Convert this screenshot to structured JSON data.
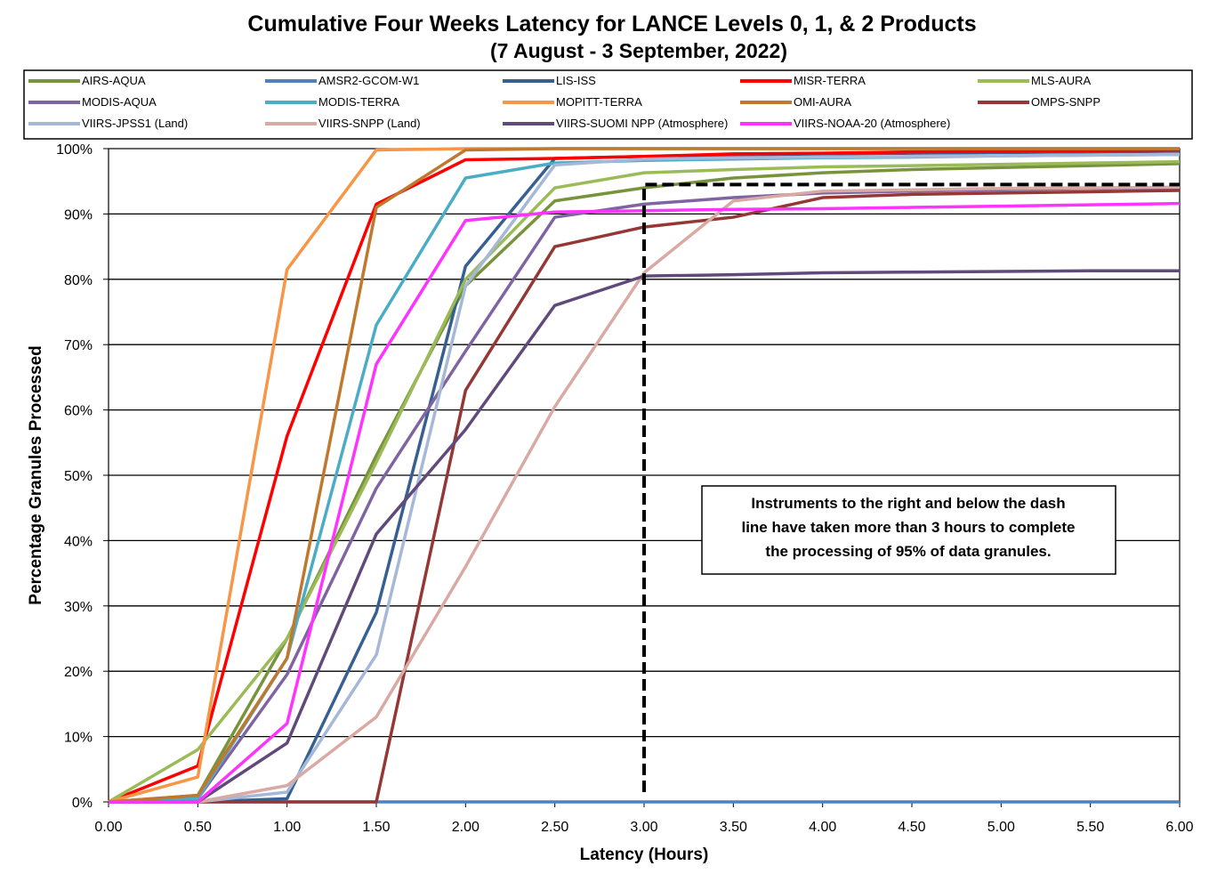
{
  "chart_data": {
    "type": "line",
    "title": "Cumulative Four Weeks Latency  for LANCE Levels 0, 1, & 2 Products",
    "subtitle": "(7  August   -  3  September,  2022)",
    "xlabel": "Latency (Hours)",
    "ylabel": "Percentage Granules Processed",
    "xlim": [
      0,
      6
    ],
    "ylim": [
      0,
      100
    ],
    "grid": "horizontal",
    "legend_position": "top",
    "x": [
      0,
      0.5,
      1.0,
      1.5,
      2.0,
      2.5,
      3.0,
      3.5,
      4.0,
      4.5,
      5.0,
      5.5,
      6.0
    ],
    "x_tick_labels": [
      "0.00",
      "0.50",
      "1.00",
      "1.50",
      "2.00",
      "2.50",
      "3.00",
      "3.50",
      "4.00",
      "4.50",
      "5.00",
      "5.50",
      "6.00"
    ],
    "y_tick_labels": [
      "0%",
      "10%",
      "20%",
      "30%",
      "40%",
      "50%",
      "60%",
      "70%",
      "80%",
      "90%",
      "100%"
    ],
    "series": [
      {
        "name": "AIRS-AQUA",
        "color": "#77933C",
        "values": [
          0,
          1,
          25,
          53,
          79,
          92,
          94,
          95.5,
          96.3,
          96.8,
          97.1,
          97.4,
          97.7
        ]
      },
      {
        "name": "AMSR2-GCOM-W1",
        "color": "#4F81BD",
        "values": [
          0,
          0,
          0,
          0,
          0,
          0,
          0,
          0,
          0,
          0,
          0,
          0,
          0
        ]
      },
      {
        "name": "LIS-ISS",
        "color": "#376092",
        "values": [
          0,
          0,
          0.5,
          29,
          82,
          98.5,
          98.8,
          99,
          99.2,
          99.3,
          99.4,
          99.5,
          99.6
        ]
      },
      {
        "name": "MISR-TERRA",
        "color": "#FF0000",
        "values": [
          0,
          5.5,
          56,
          91.5,
          98.3,
          98.5,
          98.8,
          99.2,
          99.3,
          99.5,
          99.6,
          99.7,
          99.8
        ]
      },
      {
        "name": "MLS-AURA",
        "color": "#9BBB59",
        "values": [
          0,
          8,
          25,
          52,
          80,
          94,
          96.3,
          96.8,
          97.2,
          97.4,
          97.6,
          97.8,
          98
        ]
      },
      {
        "name": "MODIS-AQUA",
        "color": "#8064A2",
        "values": [
          0,
          0.5,
          19.5,
          48,
          69,
          89.5,
          91.5,
          92.5,
          93.2,
          93.5,
          93.7,
          93.9,
          94
        ]
      },
      {
        "name": "MODIS-TERRA",
        "color": "#4BACC6",
        "values": [
          0,
          0.5,
          22,
          73,
          95.5,
          97.8,
          98.2,
          98.4,
          98.6,
          98.7,
          98.9,
          99,
          99.1
        ]
      },
      {
        "name": "MOPITT-TERRA",
        "color": "#F79646",
        "values": [
          0,
          3.8,
          81.5,
          99.8,
          100,
          100,
          100,
          100,
          100,
          100,
          100,
          100,
          100
        ]
      },
      {
        "name": "OMI-AURA",
        "color": "#C0782F",
        "values": [
          0,
          1,
          22,
          91,
          99.8,
          100,
          100,
          100,
          100,
          100,
          100,
          100,
          100
        ]
      },
      {
        "name": "OMPS-SNPP",
        "color": "#953735",
        "values": [
          0,
          0,
          0,
          0,
          63,
          85,
          88,
          89.5,
          92.5,
          93,
          93.2,
          93.4,
          93.6
        ]
      },
      {
        "name": "VIIRS-JPSS1 (Land)",
        "color": "#A6B8D7",
        "values": [
          0,
          0,
          1.5,
          22.5,
          79,
          97.5,
          98.4,
          98.6,
          98.7,
          98.8,
          98.9,
          99,
          99.1
        ]
      },
      {
        "name": "VIIRS-SNPP (Land)",
        "color": "#D9A9A3",
        "values": [
          0,
          0,
          2.5,
          13,
          36,
          60.5,
          81,
          92,
          93.5,
          93.7,
          93.9,
          94,
          94.1
        ]
      },
      {
        "name": "VIIRS-SUOMI NPP (Atmosphere)",
        "color": "#604A7B",
        "values": [
          0,
          0,
          9,
          41,
          57,
          76,
          80.5,
          80.7,
          81,
          81.1,
          81.2,
          81.3,
          81.3
        ]
      },
      {
        "name": "VIIRS-NOAA-20 (Atmosphere)",
        "color": "#FF33FF",
        "values": [
          0,
          0,
          12,
          67,
          89,
          90.3,
          90.5,
          90.7,
          90.8,
          91,
          91.2,
          91.4,
          91.6
        ]
      }
    ],
    "threshold_line": {
      "x": [
        3.0,
        3.0,
        6.0
      ],
      "y": [
        1.5,
        94.5,
        94.5
      ],
      "style": "dashed",
      "color": "#000000"
    },
    "annotation": [
      "Instruments to the right and below the dash",
      "line have taken more than 3 hours to complete",
      "the processing of 95% of data granules."
    ]
  }
}
